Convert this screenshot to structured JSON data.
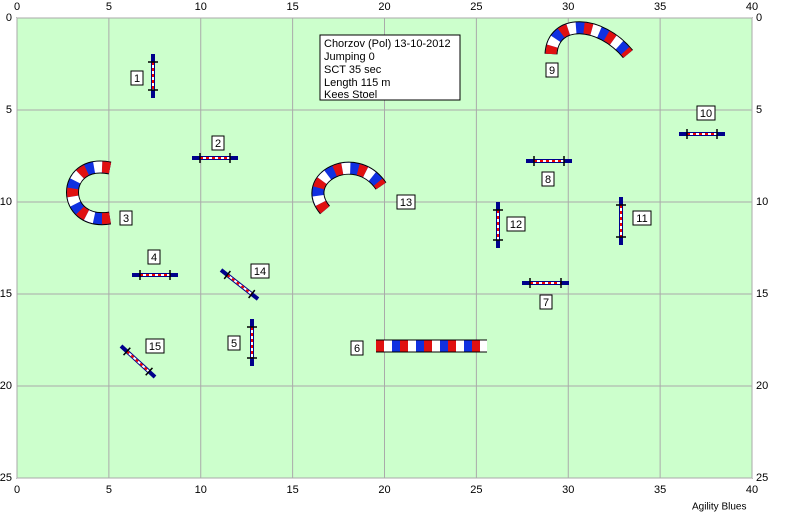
{
  "xticks": [
    0,
    5,
    10,
    15,
    20,
    25,
    30,
    35,
    40
  ],
  "yticks": [
    0,
    5,
    10,
    15,
    20,
    25
  ],
  "xlim": [
    0,
    40
  ],
  "ylim": [
    0,
    25
  ],
  "info": [
    "Chorzov (Pol) 13-10-2012",
    "Jumping 0",
    "SCT 35 sec",
    "Length 115 m",
    "Kees Stoel"
  ],
  "obstacles": [
    "1",
    "2",
    "3",
    "4",
    "5",
    "6",
    "7",
    "8",
    "9",
    "10",
    "11",
    "12",
    "13",
    "14",
    "15"
  ],
  "footer": "Agility Blues"
}
